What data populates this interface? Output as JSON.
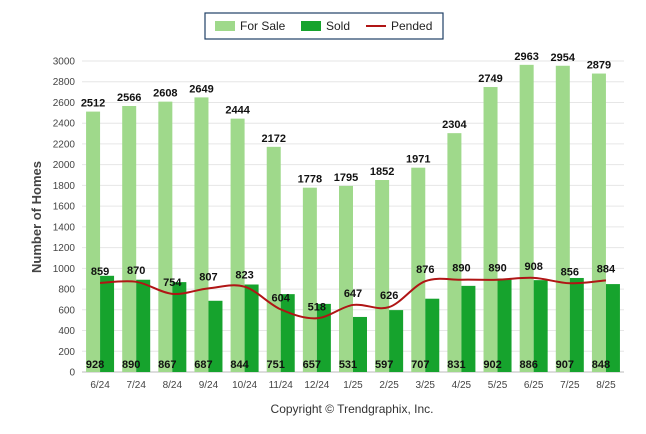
{
  "chart_data": {
    "type": "bar",
    "ylabel": "Number of Homes",
    "ylim": [
      0,
      3000
    ],
    "ytick_step": 200,
    "grid": true,
    "legend_position": "top-center",
    "categories": [
      "6/24",
      "7/24",
      "8/24",
      "9/24",
      "10/24",
      "11/24",
      "12/24",
      "1/25",
      "2/25",
      "3/25",
      "4/25",
      "5/25",
      "6/25",
      "7/25",
      "8/25"
    ],
    "series": [
      {
        "name": "For Sale",
        "kind": "bar",
        "color": "#9fd98b",
        "values": [
          2512,
          2566,
          2608,
          2649,
          2444,
          2172,
          1778,
          1795,
          1852,
          1971,
          2304,
          2749,
          2963,
          2954,
          2879
        ]
      },
      {
        "name": "Sold",
        "kind": "bar",
        "color": "#16a32d",
        "values": [
          928,
          890,
          867,
          687,
          844,
          751,
          657,
          531,
          597,
          707,
          831,
          902,
          886,
          907,
          848
        ]
      },
      {
        "name": "Pended",
        "kind": "line",
        "color": "#b01515",
        "values": [
          859,
          870,
          754,
          807,
          823,
          604,
          518,
          647,
          626,
          876,
          890,
          890,
          908,
          856,
          884
        ]
      }
    ]
  },
  "footer": {
    "copyright": "Copyright © Trendgraphix, Inc."
  }
}
